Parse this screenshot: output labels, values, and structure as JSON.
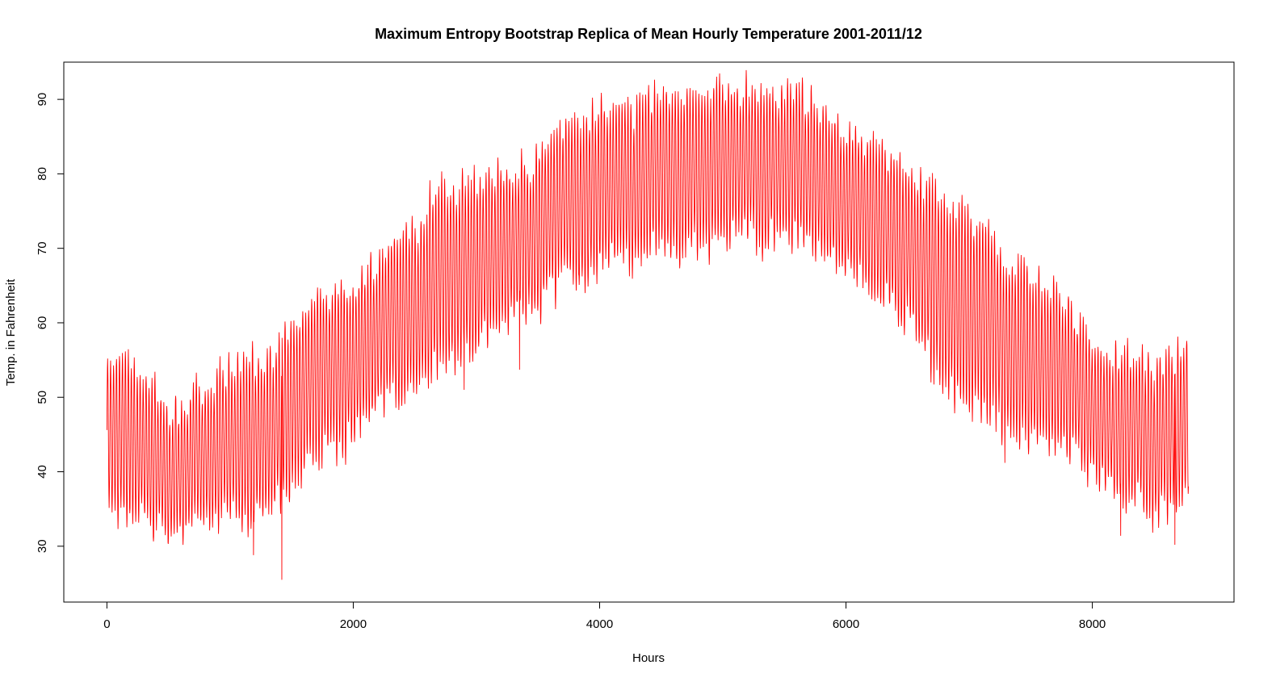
{
  "chart_data": {
    "type": "line",
    "title": "Maximum Entropy Bootstrap Replica of Mean Hourly Temperature 2001-2011/12",
    "xlabel": "Hours",
    "ylabel": "Temp. in Fahrenheit",
    "xlim": [
      -350,
      9150
    ],
    "ylim": [
      22.5,
      95
    ],
    "x_ticks": [
      0,
      2000,
      4000,
      6000,
      8000
    ],
    "x_tick_labels": [
      "0",
      "2000",
      "4000",
      "6000",
      "8000"
    ],
    "y_ticks": [
      30,
      40,
      50,
      60,
      70,
      80,
      90
    ],
    "y_tick_labels": [
      "30",
      "40",
      "50",
      "60",
      "70",
      "80",
      "90"
    ],
    "grid": false,
    "legend": "none",
    "series": [
      {
        "color": "#ff0000",
        "envelope": {
          "x": [
            0,
            100,
            300,
            500,
            700,
            900,
            1100,
            1300,
            1500,
            1700,
            1900,
            2100,
            2300,
            2500,
            2700,
            2900,
            3100,
            3300,
            3500,
            3700,
            3900,
            4100,
            4300,
            4500,
            4700,
            4900,
            5100,
            5300,
            5500,
            5700,
            5900,
            6100,
            6300,
            6500,
            6700,
            6900,
            7100,
            7300,
            7500,
            7700,
            7900,
            8100,
            8300,
            8500,
            8700,
            8780
          ],
          "y_low": [
            37,
            34,
            33,
            31,
            33,
            34,
            34,
            34,
            38,
            42,
            43,
            48,
            50,
            51,
            54,
            56,
            58,
            60,
            62,
            66,
            67,
            68,
            69,
            70,
            70,
            70.5,
            72,
            71,
            71,
            70,
            68,
            65,
            63,
            60,
            54,
            49,
            49,
            45,
            44,
            43,
            42,
            37,
            36,
            35,
            34,
            37
          ],
          "y_high": [
            55,
            55,
            53,
            48,
            51,
            53,
            54,
            56,
            59,
            64,
            64,
            67,
            71,
            73,
            78,
            79,
            80,
            80,
            82,
            86,
            88,
            88,
            89,
            90,
            90.5,
            91,
            91,
            91,
            91,
            90,
            86,
            85,
            84,
            81,
            78,
            75,
            73,
            69,
            67,
            65,
            60,
            56,
            55,
            54,
            57,
            57
          ],
          "period": 24,
          "noise": 1.8,
          "spikes": [
            {
              "x": 1420,
              "y": 25.5
            },
            {
              "x": 1190,
              "y": 28.8
            },
            {
              "x": 8670,
              "y": 30.2
            },
            {
              "x": 5620,
              "y": 92.3
            },
            {
              "x": 3350,
              "y": 53.7
            },
            {
              "x": 2900,
              "y": 51
            },
            {
              "x": 3830,
              "y": 66.5
            },
            {
              "x": 7290,
              "y": 41.2
            },
            {
              "x": 8230,
              "y": 31.4
            }
          ]
        }
      }
    ]
  }
}
